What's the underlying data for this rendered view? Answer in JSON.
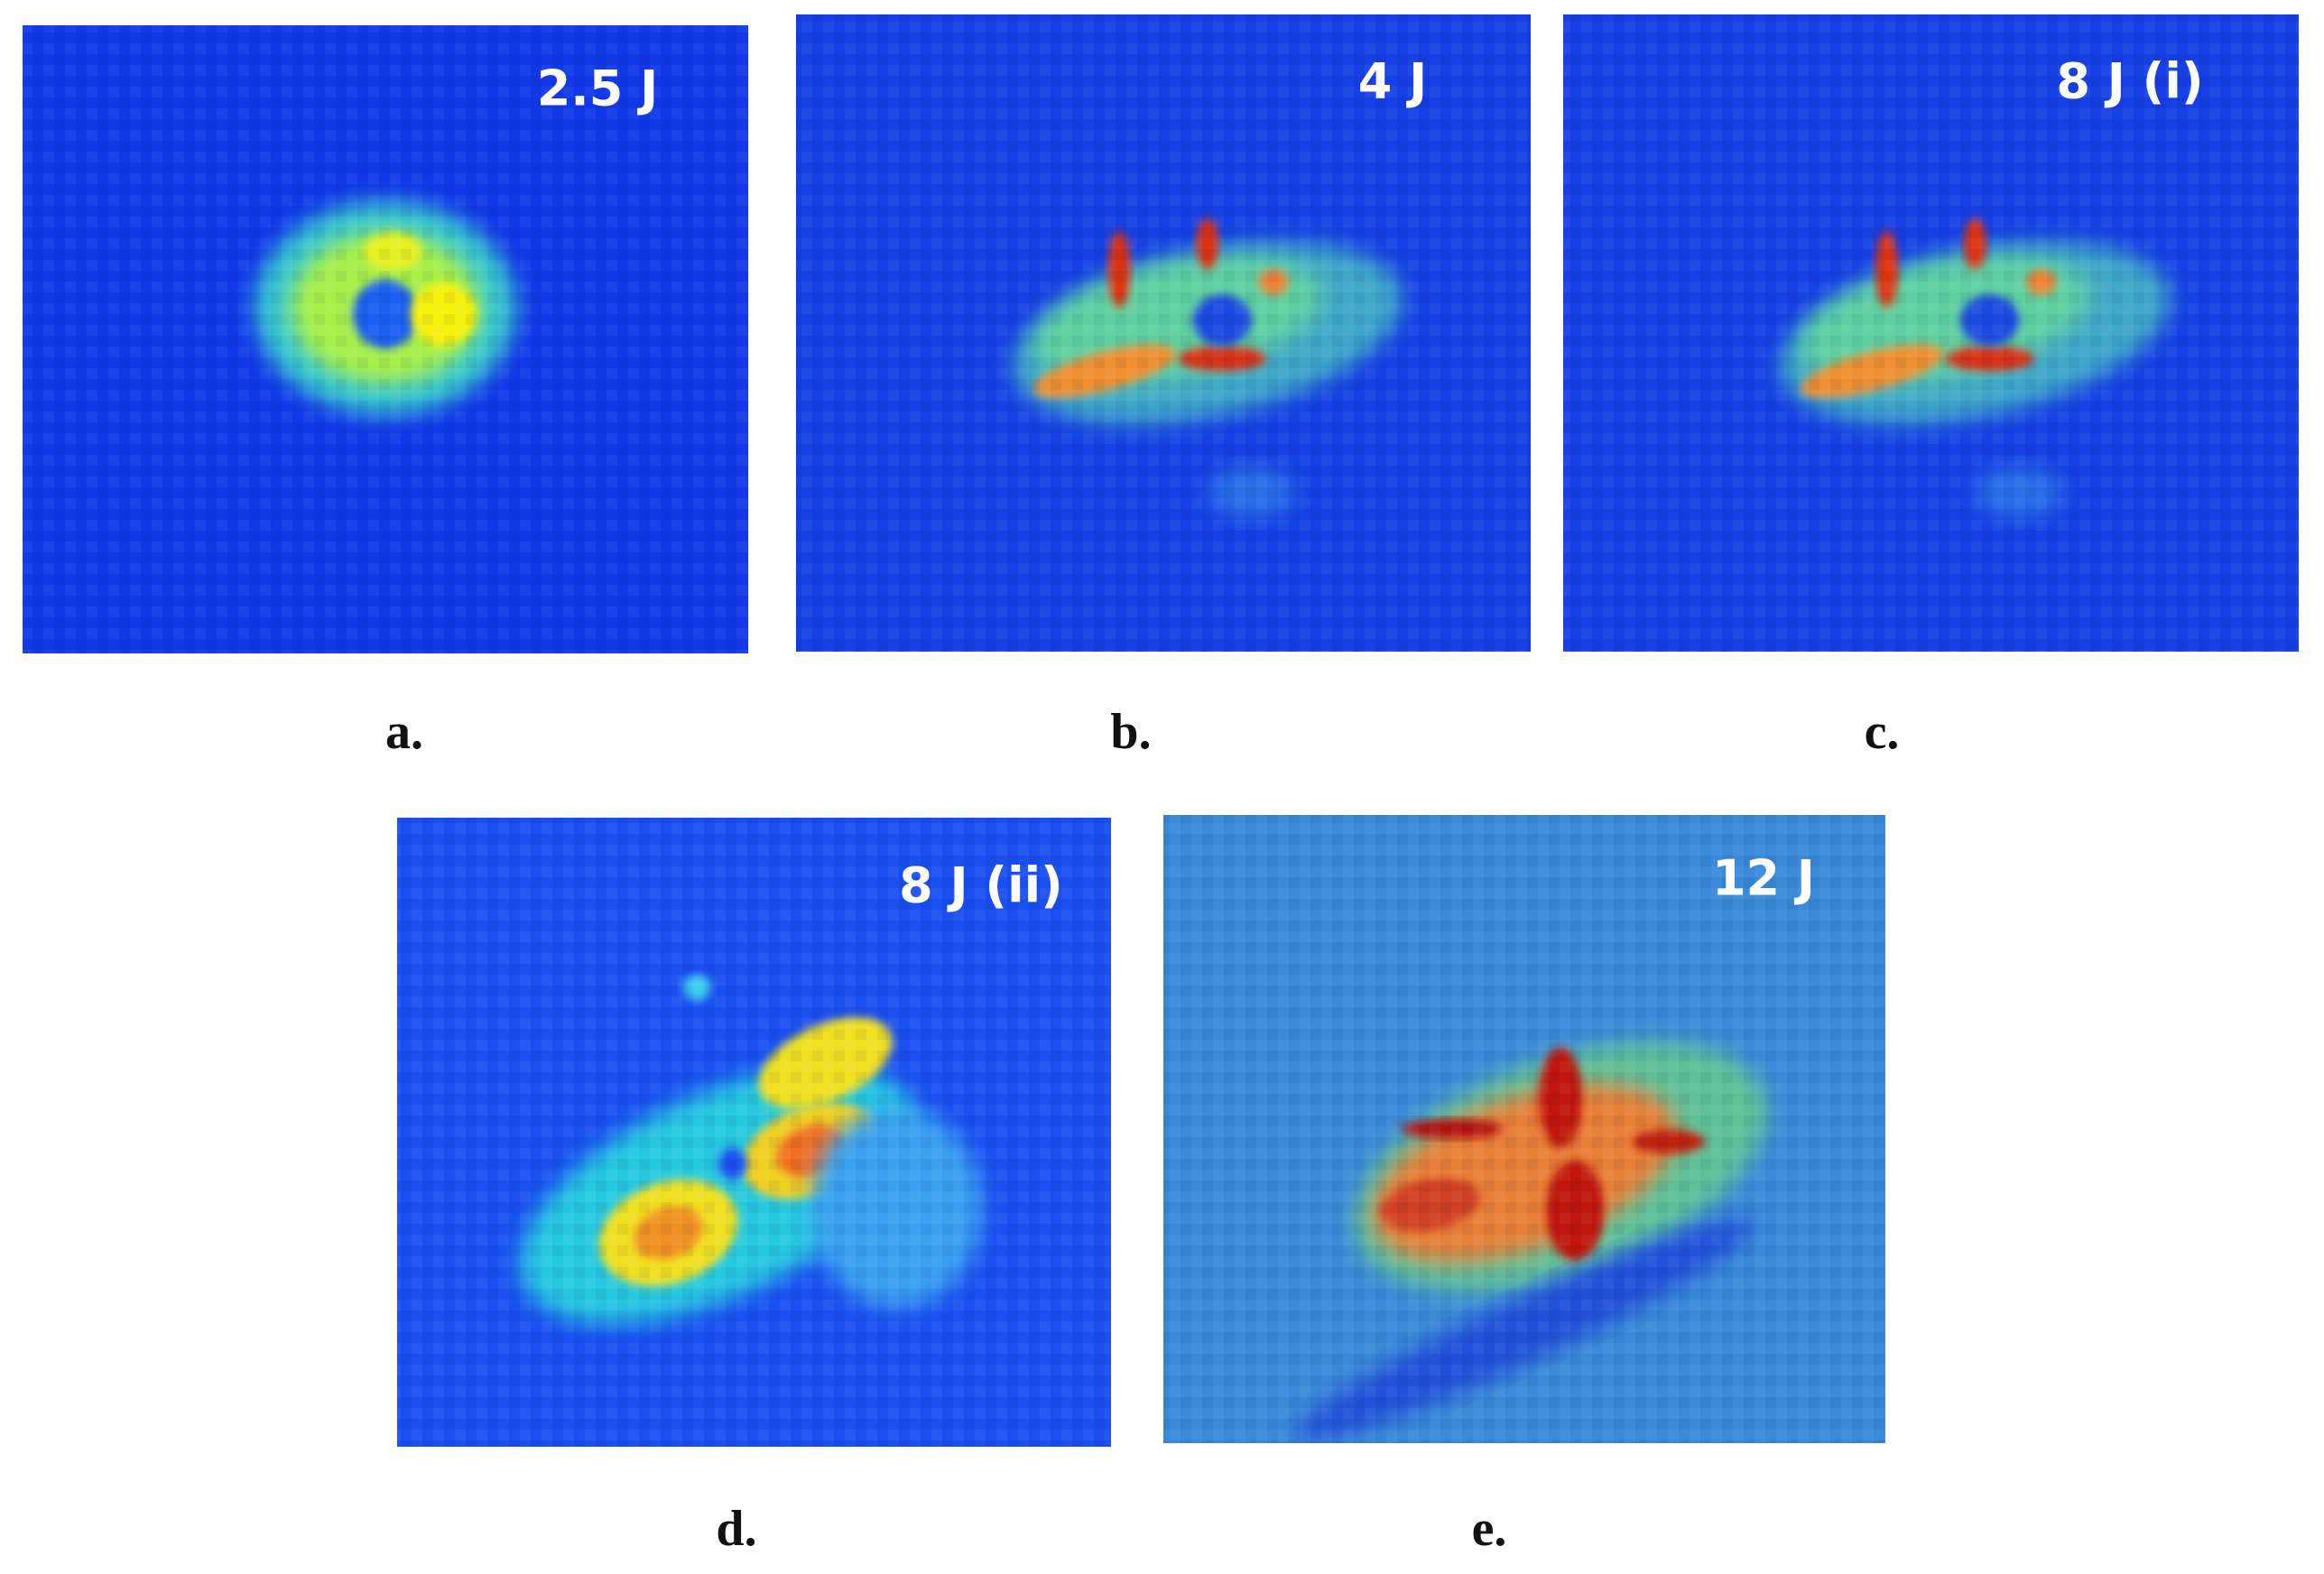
{
  "panels": [
    {
      "energy": "2.5 J",
      "caption": "a."
    },
    {
      "energy": "4 J",
      "caption": "b."
    },
    {
      "energy": "8 J (i)",
      "caption": "c."
    },
    {
      "energy": "8 J (ii)",
      "caption": "d."
    },
    {
      "energy": "12 J",
      "caption": "e."
    }
  ]
}
